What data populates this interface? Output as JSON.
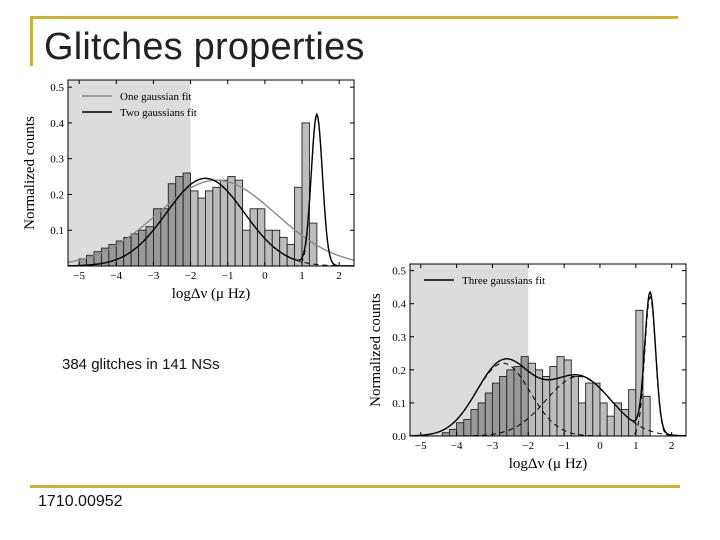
{
  "slide": {
    "title": "Glitches properties",
    "note": "384 glitches in 141 NSs",
    "footer": "1710.00952",
    "accent_color": "#c8b23a"
  },
  "chart_data": [
    {
      "type": "histogram",
      "ylabel": "Normalized counts",
      "xlabel": "logΔν (μ Hz)",
      "xlim": [
        -5.3,
        2.4
      ],
      "ylim": [
        0,
        0.52
      ],
      "xticks": [
        -5,
        -4,
        -3,
        -2,
        -1,
        0,
        1,
        2
      ],
      "xtick_labels": [
        "−5",
        "−4",
        "−3",
        "−2",
        "−1",
        "0",
        "1",
        "2"
      ],
      "yticks": [
        0.1,
        0.2,
        0.3,
        0.4,
        0.5
      ],
      "ytick_labels": [
        "0.1",
        "0.2",
        "0.3",
        "0.4",
        "0.5"
      ],
      "shaded_region": [
        -5.3,
        -2.0
      ],
      "bins_start": -5.0,
      "bin_width": 0.2,
      "bar_values": [
        0.02,
        0.03,
        0.04,
        0.05,
        0.06,
        0.07,
        0.08,
        0.09,
        0.1,
        0.11,
        0.16,
        0.16,
        0.23,
        0.25,
        0.26,
        0.21,
        0.19,
        0.21,
        0.22,
        0.24,
        0.25,
        0.24,
        0.1,
        0.16,
        0.16,
        0.1,
        0.1,
        0.08,
        0.06,
        0.22,
        0.4,
        0.12,
        0.0,
        0.0
      ],
      "series": [
        {
          "name": "One gaussian fit",
          "color": "#8a8a8a",
          "dash": "solid",
          "curves": [
            {
              "amp": 0.24,
              "mu": -1.3,
              "sigma": 1.6
            }
          ]
        },
        {
          "name": "Two gaussians fit",
          "color": "#000000",
          "dash": "solid",
          "curves": [
            {
              "amp": 0.245,
              "mu": -1.6,
              "sigma": 1.05
            },
            {
              "amp": 0.42,
              "mu": 1.4,
              "sigma": 0.15
            }
          ]
        }
      ],
      "grid": false,
      "legend_position": "top-left"
    },
    {
      "type": "histogram",
      "ylabel": "Normalized counts",
      "xlabel": "logΔν (μ Hz)",
      "xlim": [
        -5.3,
        2.4
      ],
      "ylim": [
        0,
        0.52
      ],
      "xticks": [
        -5,
        -4,
        -3,
        -2,
        -1,
        0,
        1,
        2
      ],
      "xtick_labels": [
        "−5",
        "−4",
        "−3",
        "−2",
        "−1",
        "0",
        "1",
        "2"
      ],
      "yticks": [
        0.0,
        0.1,
        0.2,
        0.3,
        0.4,
        0.5
      ],
      "ytick_labels": [
        "0.0",
        "0.1",
        "0.2",
        "0.3",
        "0.4",
        "0.5"
      ],
      "shaded_region": [
        -5.3,
        -2.0
      ],
      "bins_start": -5.0,
      "bin_width": 0.2,
      "bar_values": [
        0.0,
        0.0,
        0.0,
        0.01,
        0.02,
        0.04,
        0.05,
        0.08,
        0.1,
        0.13,
        0.16,
        0.18,
        0.2,
        0.21,
        0.24,
        0.22,
        0.2,
        0.18,
        0.21,
        0.24,
        0.23,
        0.18,
        0.1,
        0.16,
        0.16,
        0.1,
        0.06,
        0.1,
        0.08,
        0.14,
        0.38,
        0.12,
        0.0,
        0.0
      ],
      "series": [
        {
          "name": "Three gaussians fit",
          "color": "#000000",
          "dash": "solid",
          "components": [
            {
              "amp": 0.22,
              "mu": -2.7,
              "sigma": 0.75
            },
            {
              "amp": 0.18,
              "mu": -0.6,
              "sigma": 0.9
            },
            {
              "amp": 0.42,
              "mu": 1.4,
              "sigma": 0.15
            }
          ]
        }
      ],
      "grid": false,
      "legend_position": "top-left"
    }
  ]
}
